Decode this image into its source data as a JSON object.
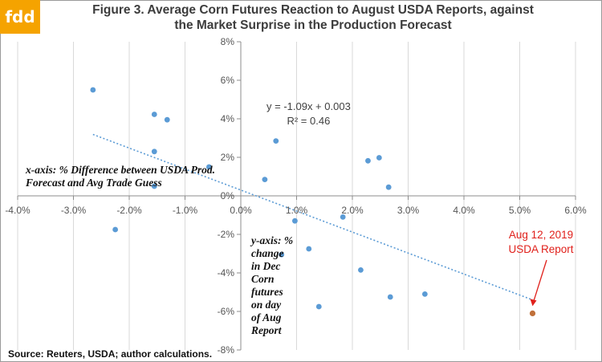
{
  "logo": {
    "text": "fdd",
    "color": "#f5a300"
  },
  "title": {
    "line1": "Figure 3. Average Corn Futures Reaction to August USDA Reports, against",
    "line2": "the Market Surprise in the Production Forecast"
  },
  "source": "Source:  Reuters, USDA;  author calculations.",
  "annotations": {
    "x_axis_note": [
      "x-axis: % Difference between USDA Prod.",
      "Forecast and Avg Trade Guess"
    ],
    "y_axis_note": [
      "y-axis: %",
      "change",
      "in Dec",
      "Corn",
      "futures",
      "on day",
      "of Aug",
      "Report"
    ],
    "equation": [
      "y = -1.09x + 0.003",
      "R² = 0.46"
    ],
    "callout": [
      "Aug 12, 2019",
      "USDA Report"
    ]
  },
  "colors": {
    "points": "#5b9bd5",
    "highlight": "#c0703a",
    "trendline": "#5b9bd5",
    "callout": "#e0201b",
    "grid": "#d9d9d9"
  },
  "chart_data": {
    "type": "scatter",
    "xlim": [
      -0.04,
      0.06
    ],
    "ylim": [
      -0.08,
      0.08
    ],
    "x_ticks": [
      "-4.0%",
      "-3.0%",
      "-2.0%",
      "-1.0%",
      "0.0%",
      "1.0%",
      "2.0%",
      "3.0%",
      "4.0%",
      "5.0%",
      "6.0%"
    ],
    "y_ticks": [
      "8%",
      "6%",
      "4%",
      "2%",
      "0%",
      "-2%",
      "-4%",
      "-6%",
      "-8%"
    ],
    "grid": "vertical",
    "points": [
      {
        "x": -0.0265,
        "y": 0.055
      },
      {
        "x": -0.0225,
        "y": -0.0175
      },
      {
        "x": -0.0155,
        "y": 0.0423
      },
      {
        "x": -0.0132,
        "y": 0.0395
      },
      {
        "x": -0.0155,
        "y": 0.023
      },
      {
        "x": -0.0057,
        "y": 0.015
      },
      {
        "x": -0.0155,
        "y": 0.005
      },
      {
        "x": 0.0043,
        "y": 0.0085
      },
      {
        "x": 0.0063,
        "y": 0.0285
      },
      {
        "x": 0.0097,
        "y": -0.013
      },
      {
        "x": 0.0073,
        "y": -0.0305
      },
      {
        "x": 0.0122,
        "y": -0.0275
      },
      {
        "x": 0.014,
        "y": -0.0575
      },
      {
        "x": 0.0183,
        "y": -0.011
      },
      {
        "x": 0.0215,
        "y": -0.0385
      },
      {
        "x": 0.0228,
        "y": 0.0182
      },
      {
        "x": 0.0248,
        "y": 0.0198
      },
      {
        "x": 0.0265,
        "y": 0.0045
      },
      {
        "x": 0.0268,
        "y": -0.0525
      },
      {
        "x": 0.033,
        "y": -0.051
      }
    ],
    "highlight_point": {
      "x": 0.0523,
      "y": -0.061
    },
    "trendline": {
      "slope": -1.09,
      "intercept": 0.003,
      "x_range": [
        -0.0265,
        0.0523
      ]
    }
  }
}
